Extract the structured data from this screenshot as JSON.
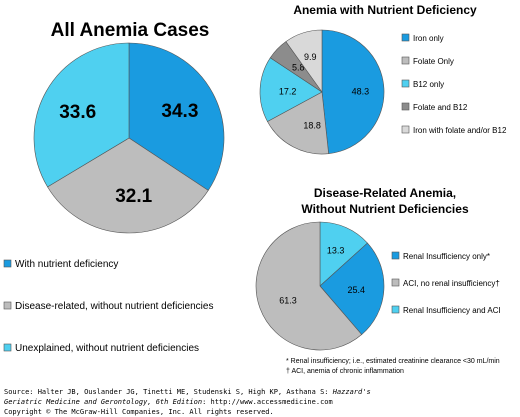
{
  "chart_data": [
    {
      "type": "pie",
      "title": "All Anemia Cases",
      "categories": [
        "With nutrient deficiency",
        "Disease-related, without nutrient deficiencies",
        "Unexplained, without nutrient deficiencies"
      ],
      "values": [
        34.3,
        32.1,
        33.6
      ],
      "value_labels": [
        "34.3",
        "32.1",
        "33.6"
      ],
      "colors": [
        "#1a9be0",
        "#bdbdbd",
        "#4fd0f0"
      ],
      "legend_placement": "bottom"
    },
    {
      "type": "pie",
      "title": "Anemia with Nutrient Deficiency",
      "categories": [
        "Iron only",
        "Folate Only",
        "B12 only",
        "Folate and B12",
        "Iron with folate and/or B12"
      ],
      "values": [
        48.3,
        18.8,
        17.2,
        5.8,
        9.9
      ],
      "value_labels": [
        "48.3",
        "18.8",
        "17.2",
        "5.8",
        "9.9"
      ],
      "colors": [
        "#1a9be0",
        "#bdbdbd",
        "#4fd0f0",
        "#8c8c8c",
        "#d9d9d9"
      ],
      "legend_placement": "right"
    },
    {
      "type": "pie",
      "title_line1": "Disease-Related Anemia,",
      "title_line2": "Without Nutrient Deficiencies",
      "categories": [
        "Renal Insufficiency and ACI",
        "Renal Insufficiency only*",
        "ACI, no renal insufficiency†"
      ],
      "values": [
        13.3,
        25.4,
        61.3
      ],
      "value_labels": [
        "13.3",
        "25.4",
        "61.3"
      ],
      "colors": [
        "#4fd0f0",
        "#1a9be0",
        "#bdbdbd"
      ],
      "legend_order": [
        1,
        2,
        0
      ],
      "legend_placement": "right"
    }
  ],
  "footnotes": {
    "line1": "* Renal insufficiency; i.e., estimated creatinine clearance <30 mL/min",
    "line2": "† ACI, anemia of chronic inflammation"
  },
  "source": {
    "line1_prefix": "Source: Halter JB, Ouslander JG, Tinetti ME, Studenski S, High KP, Asthana S: ",
    "line1_italic": "Hazzard's",
    "line2_italic": "Geriatric Medicine and Gerontology, 6th Edition",
    "line2_suffix": ": http://www.accessmedicine.com",
    "line3": "Copyright © The McGraw-Hill Companies, Inc. All rights reserved."
  }
}
